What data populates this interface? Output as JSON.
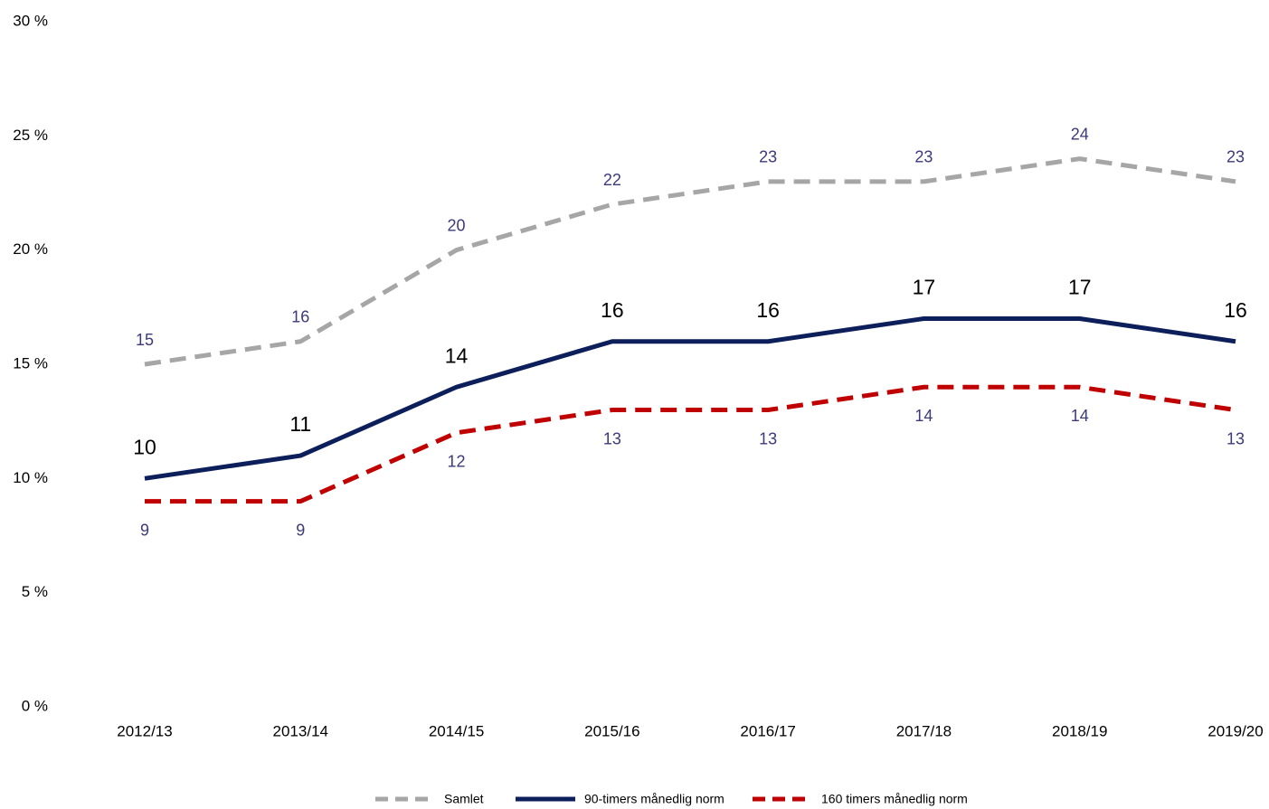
{
  "chart_data": {
    "type": "line",
    "categories": [
      "2012/13",
      "2013/14",
      "2014/15",
      "2015/16",
      "2016/17",
      "2017/18",
      "2018/19",
      "2019/20"
    ],
    "series": [
      {
        "name": "Samlet",
        "color": "#a6a6a6",
        "dash": true,
        "values": [
          15,
          16,
          20,
          22,
          23,
          23,
          24,
          23
        ]
      },
      {
        "name": "90-timers månedlig norm",
        "color": "#0c1f5a",
        "dash": false,
        "values": [
          10,
          11,
          14,
          16,
          16,
          17,
          17,
          16
        ]
      },
      {
        "name": "160 timers månedlig norm",
        "color": "#c00000",
        "dash": true,
        "values": [
          9,
          9,
          12,
          13,
          13,
          14,
          14,
          13
        ]
      }
    ],
    "ylim": [
      0,
      30
    ],
    "yticks": [
      {
        "value": 0,
        "label": "0 %"
      },
      {
        "value": 5,
        "label": "5 %"
      },
      {
        "value": 10,
        "label": "10 %"
      },
      {
        "value": 15,
        "label": "15 %"
      },
      {
        "value": 20,
        "label": "20 %"
      },
      {
        "value": 25,
        "label": "25 %"
      },
      {
        "value": 30,
        "label": "30 %"
      }
    ],
    "legend": "bottom"
  }
}
